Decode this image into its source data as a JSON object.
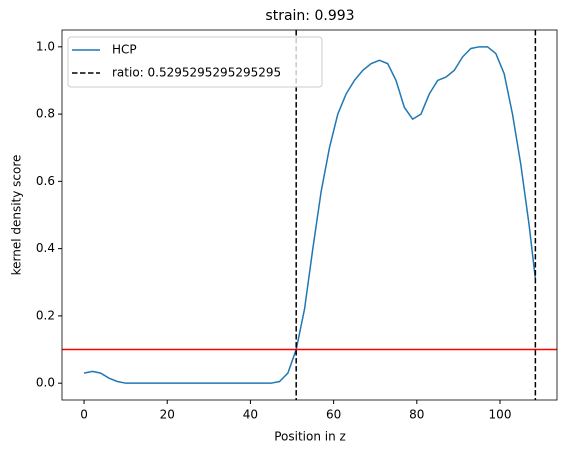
{
  "chart_data": {
    "type": "line",
    "title": "strain: 0.993",
    "xlabel": "Position in z",
    "ylabel": "kernel density score",
    "x": [
      0,
      2,
      4,
      6,
      8,
      10,
      20,
      30,
      40,
      45,
      47,
      49,
      51,
      53,
      55,
      57,
      59,
      61,
      63,
      65,
      67,
      69,
      71,
      73,
      75,
      77,
      79,
      81,
      83,
      85,
      87,
      89,
      91,
      93,
      95,
      97,
      99,
      101,
      103,
      105,
      107,
      108.5
    ],
    "series": [
      {
        "name": "HCP",
        "color": "#1f77b4",
        "values": [
          0.03,
          0.035,
          0.03,
          0.015,
          0.005,
          0.0,
          0.0,
          0.0,
          0.0,
          0.0,
          0.005,
          0.03,
          0.1,
          0.22,
          0.4,
          0.57,
          0.7,
          0.8,
          0.86,
          0.9,
          0.93,
          0.95,
          0.96,
          0.95,
          0.9,
          0.82,
          0.785,
          0.8,
          0.86,
          0.9,
          0.91,
          0.93,
          0.97,
          0.995,
          1.0,
          1.0,
          0.98,
          0.92,
          0.8,
          0.65,
          0.47,
          0.31
        ]
      }
    ],
    "vlines": {
      "name": "ratio: 0.5295295295295295",
      "color": "#000000",
      "values": [
        51,
        108.5
      ]
    },
    "hline": {
      "value": 0.1,
      "color": "#ff0000"
    },
    "xlim": [
      -5.3,
      113.7
    ],
    "ylim": [
      -0.05,
      1.05
    ],
    "xticks": [
      0,
      20,
      40,
      60,
      80,
      100
    ],
    "yticks": [
      {
        "value": 0,
        "label": "0.0"
      },
      0.2,
      0.4,
      0.6,
      0.8,
      {
        "value": 1,
        "label": "1.0"
      }
    ],
    "legend": "upper left"
  }
}
